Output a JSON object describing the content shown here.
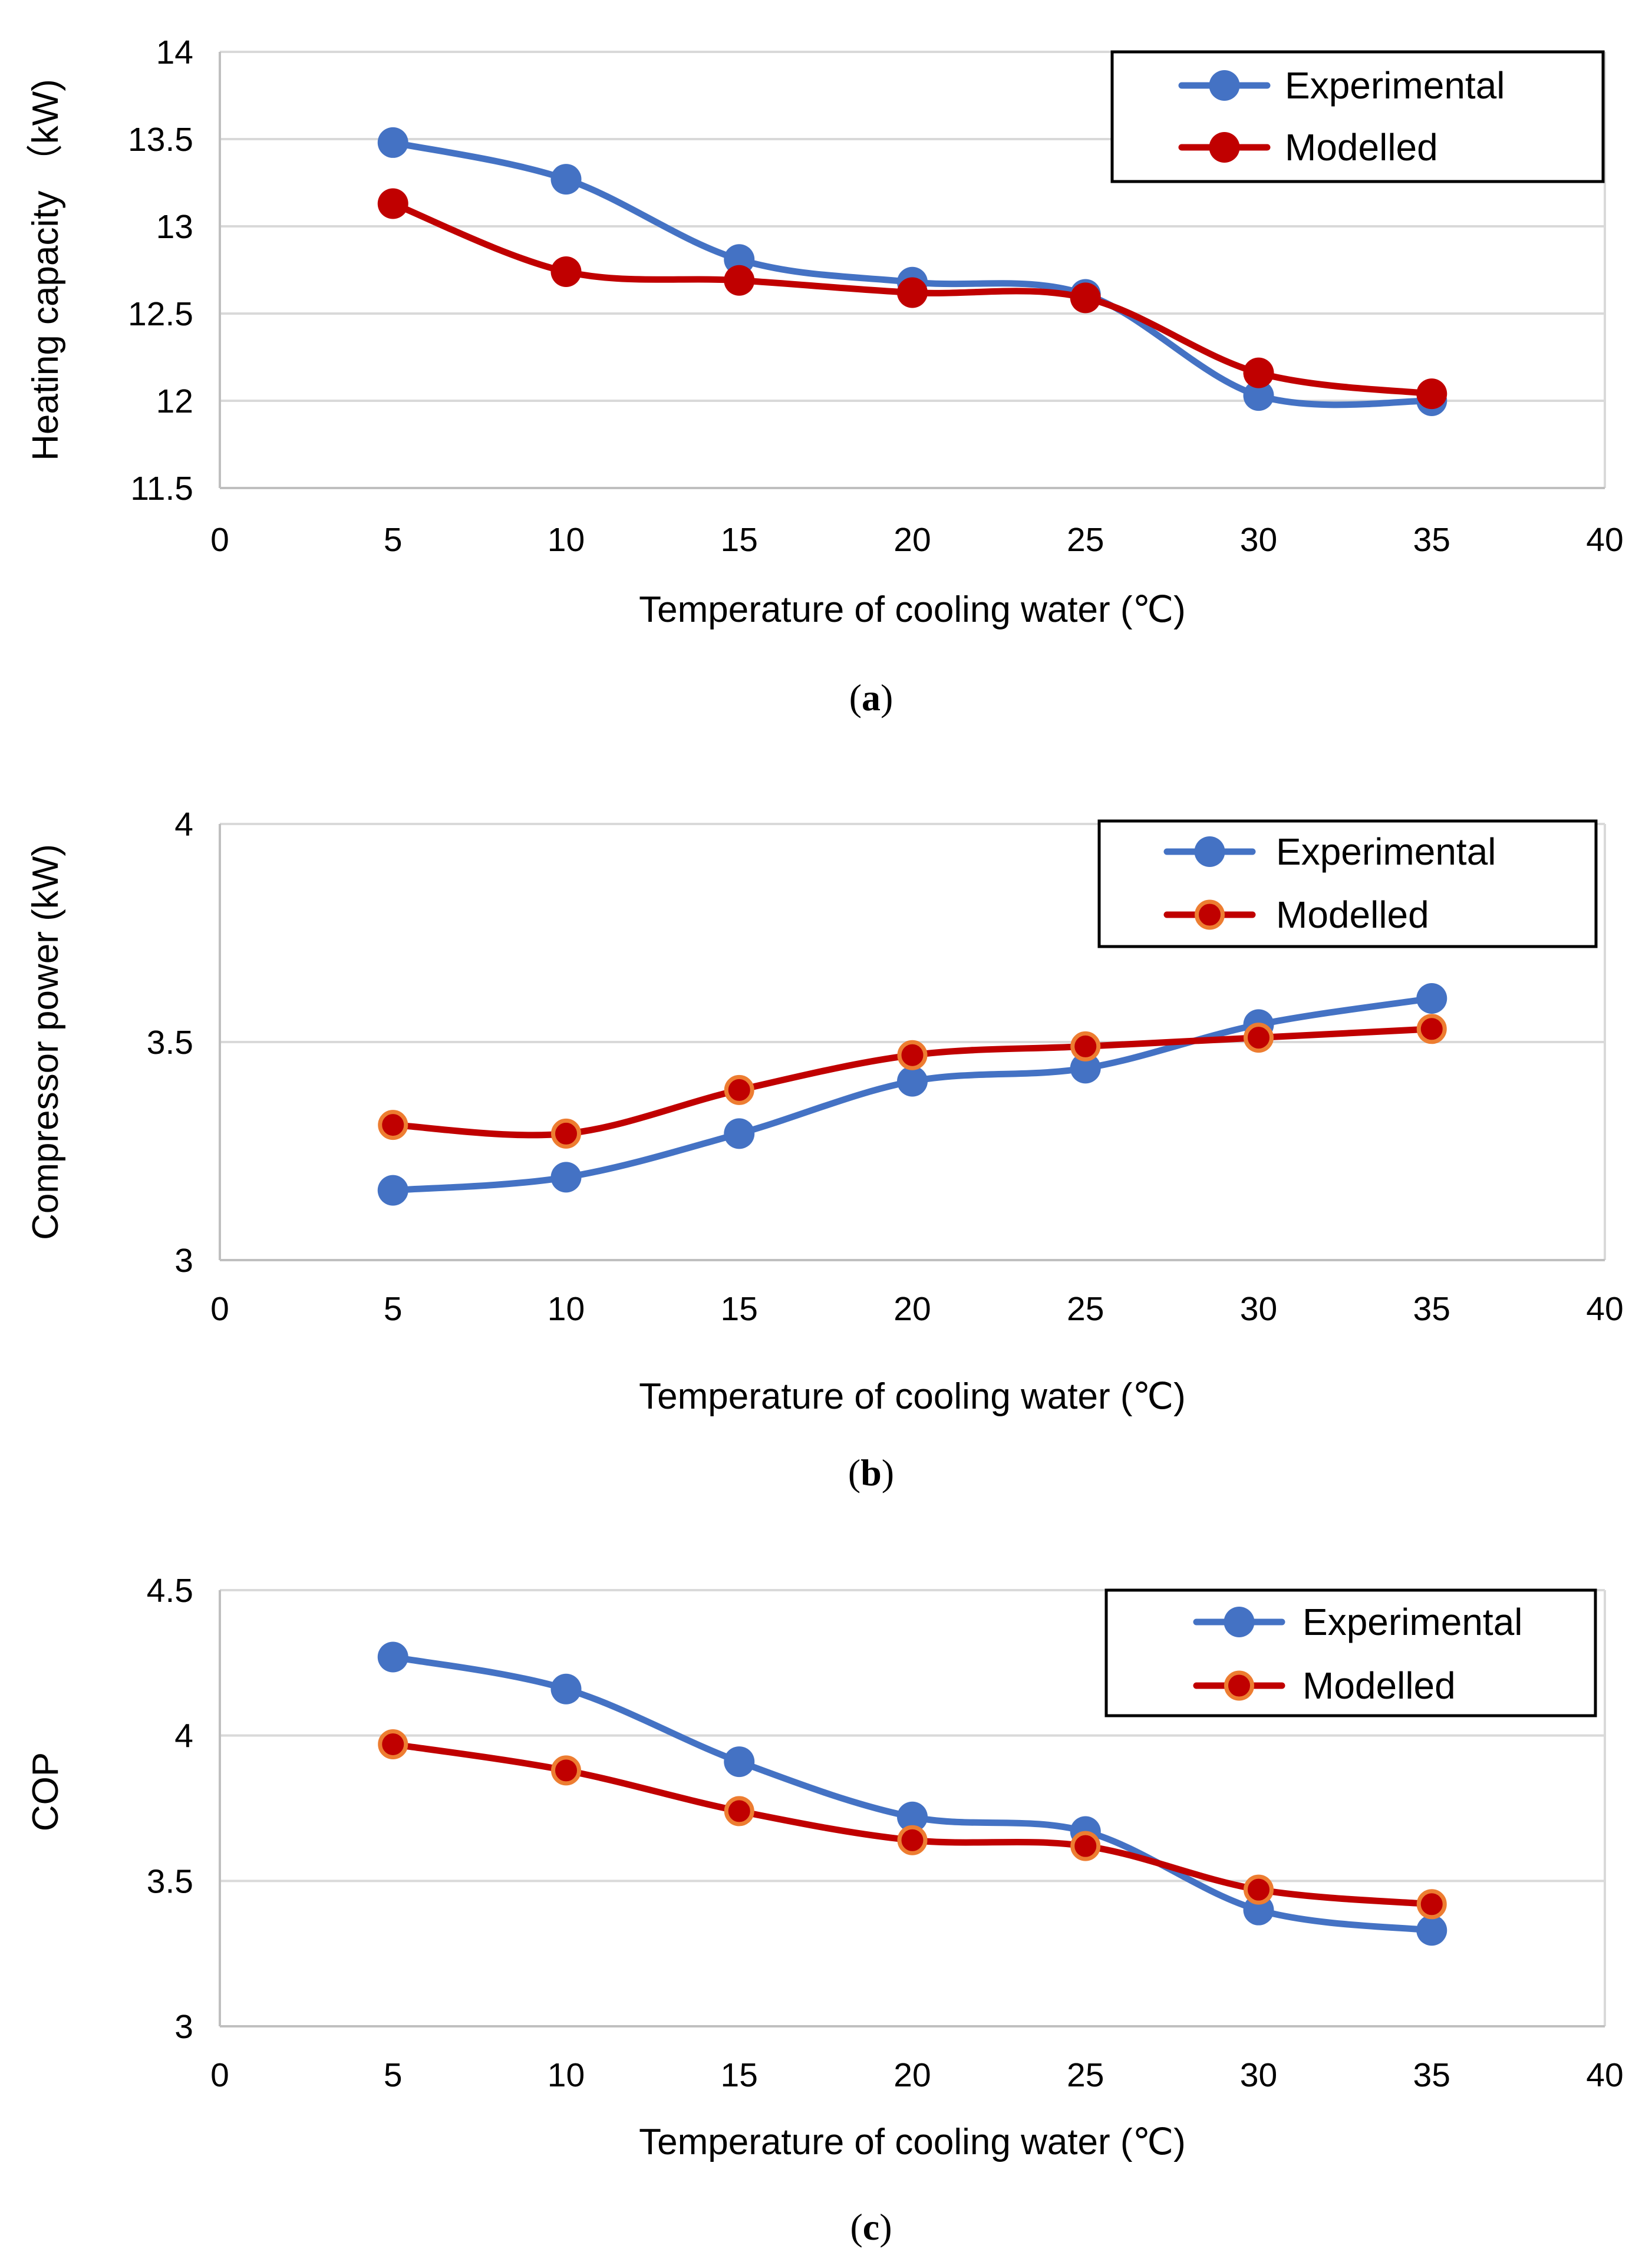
{
  "colors": {
    "experimental": "#4472C4",
    "modelled": "#C00000",
    "modelled_marker_edge": "#ED7D31",
    "grid": "#D9D9D9",
    "axis": "#BFBFBF",
    "legend_border": "#000000"
  },
  "chart_data": [
    {
      "type": "line",
      "caption": "a",
      "xlabel": "Temperature of cooling water (℃)",
      "ylabel": "Heating capacity （kW)",
      "xlim": [
        0,
        40
      ],
      "ylim": [
        11.5,
        14
      ],
      "xticks": [
        0,
        5,
        10,
        15,
        20,
        25,
        30,
        35,
        40
      ],
      "yticks": [
        11.5,
        12,
        12.5,
        13,
        13.5,
        14
      ],
      "ytick_labels": [
        "11.5",
        "12",
        "12.5",
        "13",
        "13.5",
        "14"
      ],
      "grid": true,
      "legend_position": "top-right",
      "x": [
        5,
        10,
        15,
        20,
        25,
        30,
        35
      ],
      "series": [
        {
          "name": "Experimental",
          "values": [
            13.48,
            13.27,
            12.81,
            12.68,
            12.61,
            12.03,
            12.0
          ]
        },
        {
          "name": "Modelled",
          "values": [
            13.13,
            12.74,
            12.69,
            12.62,
            12.59,
            12.16,
            12.04
          ]
        }
      ]
    },
    {
      "type": "line",
      "caption": "b",
      "xlabel": "Temperature of cooling water (℃)",
      "ylabel": "Compressor power (kW)",
      "xlim": [
        0,
        40
      ],
      "ylim": [
        3,
        4
      ],
      "xticks": [
        0,
        5,
        10,
        15,
        20,
        25,
        30,
        35,
        40
      ],
      "yticks": [
        3,
        3.5,
        4
      ],
      "ytick_labels": [
        "3",
        "3.5",
        "4"
      ],
      "grid": true,
      "legend_position": "top-right",
      "x": [
        5,
        10,
        15,
        20,
        25,
        30,
        35
      ],
      "series": [
        {
          "name": "Experimental",
          "values": [
            3.16,
            3.19,
            3.29,
            3.41,
            3.44,
            3.54,
            3.6
          ]
        },
        {
          "name": "Modelled",
          "values": [
            3.31,
            3.29,
            3.39,
            3.47,
            3.49,
            3.51,
            3.53
          ]
        }
      ]
    },
    {
      "type": "line",
      "caption": "c",
      "xlabel": "Temperature of cooling water (℃)",
      "ylabel": "COP",
      "xlim": [
        0,
        40
      ],
      "ylim": [
        3,
        4.5
      ],
      "xticks": [
        0,
        5,
        10,
        15,
        20,
        25,
        30,
        35,
        40
      ],
      "yticks": [
        3,
        3.5,
        4,
        4.5
      ],
      "ytick_labels": [
        "3",
        "3.5",
        "4",
        "4.5"
      ],
      "grid": true,
      "legend_position": "top-right",
      "x": [
        5,
        10,
        15,
        20,
        25,
        30,
        35
      ],
      "series": [
        {
          "name": "Experimental",
          "values": [
            4.27,
            4.16,
            3.91,
            3.72,
            3.67,
            3.4,
            3.33
          ]
        },
        {
          "name": "Modelled",
          "values": [
            3.97,
            3.88,
            3.74,
            3.64,
            3.62,
            3.47,
            3.42
          ]
        }
      ]
    }
  ]
}
